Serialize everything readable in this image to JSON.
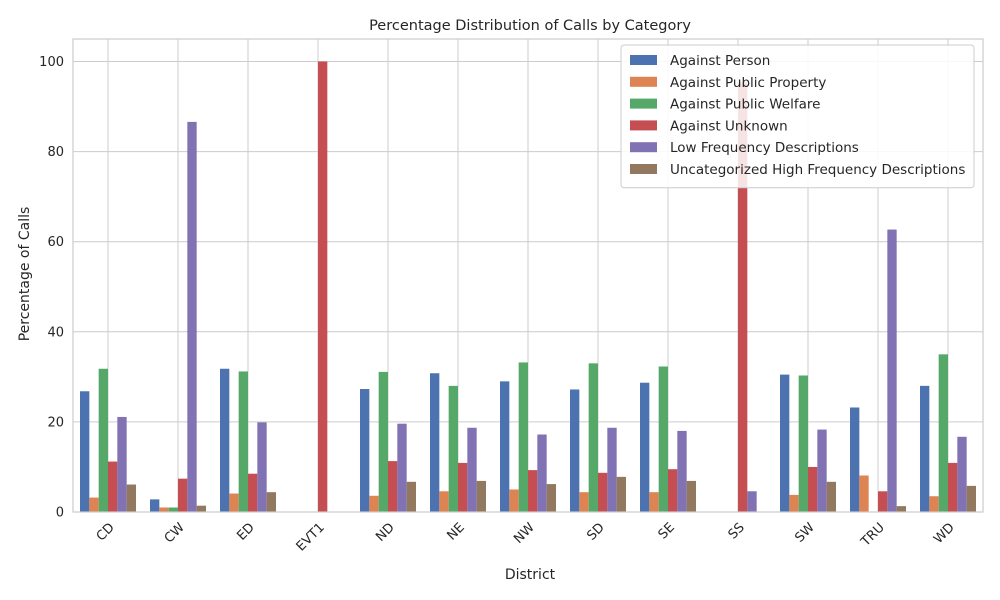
{
  "chart_data": {
    "type": "bar",
    "title": "Percentage Distribution of Calls by Category",
    "xlabel": "District",
    "ylabel": "Percentage of Calls",
    "ylim": [
      0,
      105
    ],
    "yticks": [
      0,
      20,
      40,
      60,
      80,
      100
    ],
    "grid": true,
    "legend_position": "top-right",
    "categories": [
      "CD",
      "CW",
      "ED",
      "EVT1",
      "ND",
      "NE",
      "NW",
      "SD",
      "SE",
      "SS",
      "SW",
      "TRU",
      "WD"
    ],
    "series": [
      {
        "name": "Against Person",
        "color": "#4c72b0",
        "values": [
          26.8,
          2.8,
          31.8,
          0,
          27.3,
          30.8,
          29.0,
          27.2,
          28.7,
          0,
          30.5,
          23.2,
          28.0
        ]
      },
      {
        "name": "Against Public Property",
        "color": "#dd8452",
        "values": [
          3.2,
          1.0,
          4.1,
          0,
          3.6,
          4.6,
          5.0,
          4.4,
          4.4,
          0,
          3.8,
          8.1,
          3.5
        ]
      },
      {
        "name": "Against Public Welfare",
        "color": "#55a868",
        "values": [
          31.8,
          1.0,
          31.2,
          0,
          31.1,
          28.0,
          33.2,
          33.0,
          32.3,
          0,
          30.3,
          0,
          35.0
        ]
      },
      {
        "name": "Against Unknown",
        "color": "#c44e52",
        "values": [
          11.2,
          7.4,
          8.5,
          100,
          11.3,
          10.9,
          9.3,
          8.7,
          9.5,
          95.4,
          10.0,
          4.6,
          10.9
        ]
      },
      {
        "name": "Low Frequency Descriptions",
        "color": "#8172b3",
        "values": [
          21.1,
          86.6,
          19.9,
          0,
          19.6,
          18.7,
          17.2,
          18.7,
          18.0,
          4.6,
          18.3,
          62.7,
          16.7
        ]
      },
      {
        "name": "Uncategorized High Frequency Descriptions",
        "color": "#937860",
        "values": [
          6.1,
          1.4,
          4.4,
          0,
          6.7,
          6.9,
          6.2,
          7.8,
          6.9,
          0,
          6.7,
          1.3,
          5.8
        ]
      }
    ]
  }
}
